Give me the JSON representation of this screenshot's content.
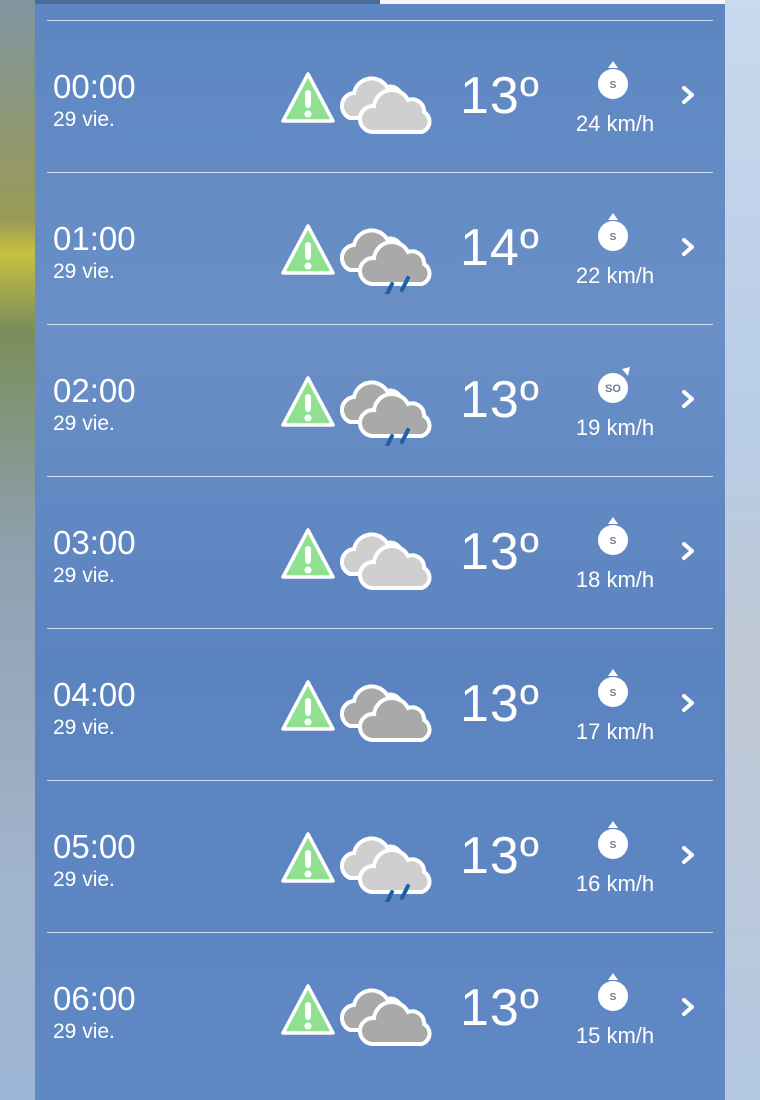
{
  "colors": {
    "panel": "#5d86c2",
    "warning": "#8fe08f",
    "cloud_light": "#cfcfcf",
    "cloud_dark": "#a9a9a9",
    "rain": "#1f5fa8"
  },
  "rows": [
    {
      "time": "00:00",
      "date": "29 vie.",
      "icon": "cloudy-icon",
      "shade": "light",
      "rain": false,
      "temp": "13º",
      "wind_dir": "S",
      "wind_speed": "24 km/h"
    },
    {
      "time": "01:00",
      "date": "29 vie.",
      "icon": "rain-icon",
      "shade": "dark",
      "rain": true,
      "temp": "14º",
      "wind_dir": "S",
      "wind_speed": "22 km/h"
    },
    {
      "time": "02:00",
      "date": "29 vie.",
      "icon": "rain-icon",
      "shade": "dark",
      "rain": true,
      "temp": "13º",
      "wind_dir": "SO",
      "wind_speed": "19 km/h"
    },
    {
      "time": "03:00",
      "date": "29 vie.",
      "icon": "cloudy-icon",
      "shade": "light",
      "rain": false,
      "temp": "13º",
      "wind_dir": "S",
      "wind_speed": "18 km/h"
    },
    {
      "time": "04:00",
      "date": "29 vie.",
      "icon": "cloudy-icon",
      "shade": "dark",
      "rain": false,
      "temp": "13º",
      "wind_dir": "S",
      "wind_speed": "17 km/h"
    },
    {
      "time": "05:00",
      "date": "29 vie.",
      "icon": "rain-icon",
      "shade": "light",
      "rain": true,
      "temp": "13º",
      "wind_dir": "S",
      "wind_speed": "16 km/h"
    },
    {
      "time": "06:00",
      "date": "29 vie.",
      "icon": "cloudy-icon",
      "shade": "dark",
      "rain": false,
      "temp": "13º",
      "wind_dir": "S",
      "wind_speed": "15 km/h"
    }
  ]
}
